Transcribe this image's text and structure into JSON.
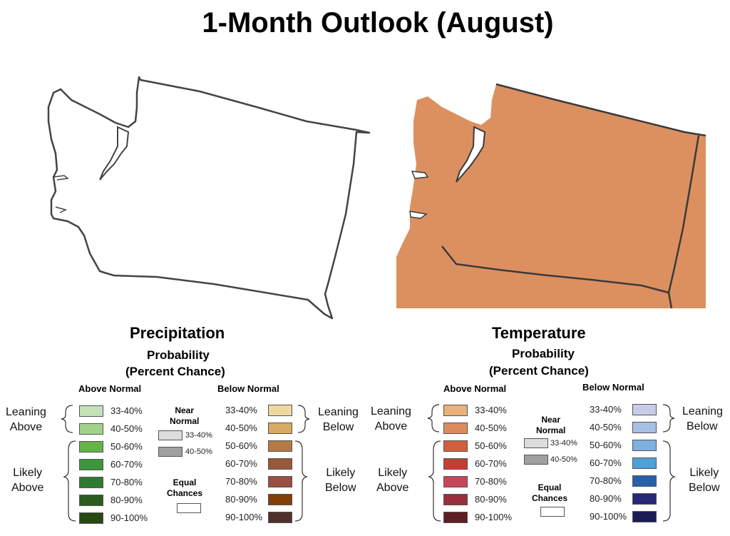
{
  "title": "1-Month Outlook (August)",
  "maps": [
    {
      "name": "precipitation-map",
      "fill": "#ffffff",
      "category": "Equal Chances"
    },
    {
      "name": "temperature-map",
      "fill": "#dc9060",
      "category": "Above Normal 40-50%"
    }
  ],
  "precip": {
    "heading": "Precipitation",
    "probability": "Probability",
    "percent_chance": "(Percent Chance)",
    "above_header": "Above Normal",
    "below_header": "Below Normal",
    "leaning_above": [
      "Leaning",
      "Above"
    ],
    "likely_above": [
      "Likely",
      "Above"
    ],
    "leaning_below": [
      "Leaning",
      "Below"
    ],
    "likely_below": [
      "Likely",
      "Below"
    ],
    "above": [
      {
        "label": "33-40%",
        "color": "#c3e2b8"
      },
      {
        "label": "40-50%",
        "color": "#a1d28c"
      },
      {
        "label": "50-60%",
        "color": "#64b446"
      },
      {
        "label": "60-70%",
        "color": "#3c963a"
      },
      {
        "label": "70-80%",
        "color": "#2e7a2e"
      },
      {
        "label": "80-90%",
        "color": "#2c5c1e"
      },
      {
        "label": "90-100%",
        "color": "#284814"
      }
    ],
    "below": [
      {
        "label": "33-40%",
        "color": "#efd8a0"
      },
      {
        "label": "40-50%",
        "color": "#d8aa62"
      },
      {
        "label": "50-60%",
        "color": "#b47a46"
      },
      {
        "label": "60-70%",
        "color": "#98583c"
      },
      {
        "label": "70-80%",
        "color": "#9a4e44"
      },
      {
        "label": "80-90%",
        "color": "#804006"
      },
      {
        "label": "90-100%",
        "color": "#50302c"
      }
    ],
    "near_normal": {
      "title": [
        "Near",
        "Normal"
      ],
      "items": [
        {
          "label": "33-40%",
          "color": "#dcdcdc"
        },
        {
          "label": "40-50%",
          "color": "#a0a0a0"
        }
      ]
    },
    "equal_chances": [
      "Equal",
      "Chances"
    ]
  },
  "temp": {
    "heading": "Temperature",
    "probability": "Probability",
    "percent_chance": "(Percent Chance)",
    "above_header": "Above Normal",
    "below_header": "Below Normal",
    "leaning_above": [
      "Leaning",
      "Above"
    ],
    "likely_above": [
      "Likely",
      "Above"
    ],
    "leaning_below": [
      "Leaning",
      "Below"
    ],
    "likely_below": [
      "Likely",
      "Below"
    ],
    "above": [
      {
        "label": "33-40%",
        "color": "#e8b27a"
      },
      {
        "label": "40-50%",
        "color": "#dc8c5c"
      },
      {
        "label": "50-60%",
        "color": "#d25e3c"
      },
      {
        "label": "60-70%",
        "color": "#c83c32"
      },
      {
        "label": "70-80%",
        "color": "#c8465a"
      },
      {
        "label": "80-90%",
        "color": "#9a2e3c"
      },
      {
        "label": "90-100%",
        "color": "#5e1e24"
      }
    ],
    "below": [
      {
        "label": "33-40%",
        "color": "#c8cce8"
      },
      {
        "label": "40-50%",
        "color": "#a6c0e4"
      },
      {
        "label": "50-60%",
        "color": "#7eb0e0"
      },
      {
        "label": "60-70%",
        "color": "#4ea0d8"
      },
      {
        "label": "70-80%",
        "color": "#2860a8"
      },
      {
        "label": "80-90%",
        "color": "#282878"
      },
      {
        "label": "90-100%",
        "color": "#1c1c56"
      }
    ],
    "near_normal": {
      "title": [
        "Near",
        "Normal"
      ],
      "items": [
        {
          "label": "33-40%",
          "color": "#dcdcdc"
        },
        {
          "label": "40-50%",
          "color": "#a0a0a0"
        }
      ]
    },
    "equal_chances": [
      "Equal",
      "Chances"
    ]
  }
}
